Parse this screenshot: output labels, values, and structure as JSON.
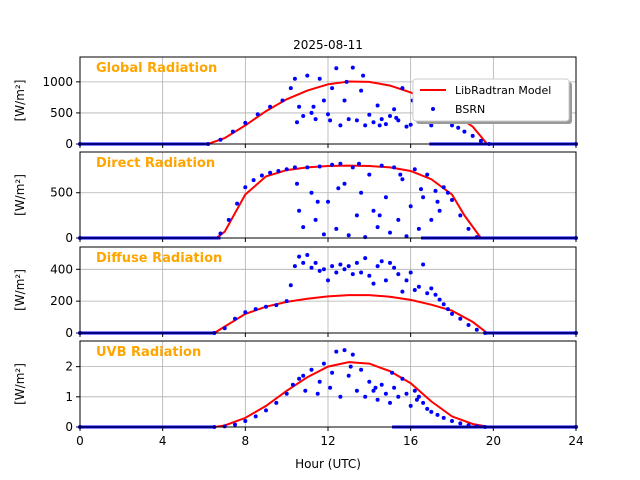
{
  "figure": {
    "title": "2025-08-11",
    "xlabel": "Hour (UTC)",
    "xlim": [
      0,
      24
    ],
    "xticks": [
      0,
      4,
      8,
      12,
      16,
      20,
      24
    ],
    "xtick_labels": [
      "0",
      "4",
      "8",
      "12",
      "16",
      "20",
      "24"
    ],
    "title_color": "#ffa500",
    "model_color": "#ff0000",
    "obs_color": "#0000ff",
    "legend": {
      "placement": "top-right of first panel",
      "model_label": "LibRadtran Model",
      "obs_label": "BSRN"
    }
  },
  "chart_data": [
    {
      "type": "line",
      "panel_title": "Global Radiation",
      "ylabel": "[W/m²]",
      "ylim": [
        0,
        1400
      ],
      "yticks": [
        0,
        500,
        1000
      ],
      "ytick_labels": [
        "0",
        "500",
        "1000"
      ],
      "grid": true,
      "series": [
        {
          "name": "LibRadtran Model",
          "style": "line",
          "x": [
            0,
            6.2,
            7,
            8,
            9,
            10,
            11,
            12,
            13,
            14,
            15,
            16,
            17,
            18,
            19,
            19.7,
            24
          ],
          "y": [
            0,
            0,
            95,
            300,
            530,
            720,
            860,
            960,
            1005,
            1000,
            940,
            830,
            690,
            500,
            280,
            0,
            0
          ]
        },
        {
          "name": "BSRN",
          "style": "scatter",
          "x": [
            0,
            6.2,
            6.8,
            7.4,
            8,
            8.6,
            9.2,
            9.8,
            10.2,
            10.4,
            10.6,
            10.8,
            11.0,
            11.2,
            11.4,
            11.6,
            11.8,
            12.0,
            12.2,
            12.4,
            12.6,
            12.8,
            13.0,
            13.2,
            13.4,
            13.6,
            13.8,
            14.0,
            14.2,
            14.4,
            14.6,
            14.8,
            15.0,
            15.2,
            15.4,
            15.6,
            15.8,
            16.0,
            16.2,
            16.4,
            16.6,
            16.8,
            17.0,
            17.2,
            17.4,
            17.6,
            17.8,
            18.0,
            18.3,
            18.6,
            19.0,
            19.4,
            19.8,
            24,
            10.5,
            11.3,
            12.1,
            12.9,
            13.7,
            14.5,
            15.3,
            16.1,
            16.9,
            17.5
          ],
          "y": [
            0,
            0,
            70,
            200,
            340,
            480,
            600,
            700,
            900,
            1050,
            600,
            450,
            1100,
            500,
            400,
            1050,
            700,
            480,
            900,
            1220,
            300,
            700,
            400,
            1230,
            380,
            860,
            300,
            470,
            350,
            620,
            400,
            320,
            450,
            560,
            380,
            900,
            280,
            310,
            450,
            600,
            520,
            380,
            300,
            520,
            450,
            400,
            380,
            300,
            260,
            200,
            130,
            50,
            0,
            0,
            350,
            600,
            380,
            1000,
            1100,
            300,
            420,
            700,
            350,
            480
          ]
        }
      ]
    },
    {
      "type": "line",
      "panel_title": "Direct Radiation",
      "ylabel": "[W/m²]",
      "ylim": [
        0,
        950
      ],
      "yticks": [
        0,
        500
      ],
      "ytick_labels": [
        "0",
        "500"
      ],
      "grid": true,
      "series": [
        {
          "name": "LibRadtran Model",
          "style": "line",
          "x": [
            0,
            6.6,
            7,
            8,
            9,
            10,
            11,
            12,
            13,
            14,
            15,
            16,
            17,
            18,
            18.6,
            19.4,
            24
          ],
          "y": [
            0,
            0,
            70,
            480,
            680,
            750,
            780,
            795,
            800,
            795,
            780,
            740,
            650,
            480,
            250,
            0,
            0
          ]
        },
        {
          "name": "BSRN",
          "style": "scatter",
          "x": [
            0,
            6.8,
            7.2,
            7.6,
            8.0,
            8.4,
            8.8,
            9.2,
            9.6,
            10.0,
            10.4,
            10.6,
            10.8,
            11.0,
            11.2,
            11.4,
            11.6,
            11.8,
            12.0,
            12.2,
            12.4,
            12.6,
            12.8,
            13.0,
            13.2,
            13.4,
            13.6,
            13.8,
            14.0,
            14.2,
            14.4,
            14.6,
            14.8,
            15.0,
            15.2,
            15.4,
            15.6,
            15.8,
            16.0,
            16.2,
            16.4,
            16.6,
            16.8,
            17.0,
            17.2,
            17.4,
            17.6,
            17.8,
            18.0,
            18.4,
            18.8,
            19.2,
            24,
            10.5,
            11.5,
            12.5,
            13.5,
            14.5,
            15.5,
            16.5,
            17.3
          ],
          "y": [
            0,
            50,
            200,
            380,
            560,
            640,
            690,
            720,
            740,
            760,
            780,
            300,
            120,
            780,
            500,
            200,
            790,
            40,
            400,
            810,
            100,
            820,
            600,
            30,
            780,
            250,
            500,
            10,
            700,
            300,
            120,
            800,
            450,
            60,
            780,
            200,
            650,
            20,
            350,
            760,
            100,
            450,
            700,
            200,
            520,
            300,
            560,
            500,
            420,
            250,
            100,
            10,
            0,
            600,
            400,
            550,
            820,
            250,
            700,
            540,
            400
          ]
        }
      ]
    },
    {
      "type": "line",
      "panel_title": "Diffuse Radiation",
      "ylabel": "[W/m²]",
      "ylim": [
        0,
        540
      ],
      "yticks": [
        0,
        200,
        400
      ],
      "ytick_labels": [
        "0",
        "200",
        "400"
      ],
      "grid": true,
      "series": [
        {
          "name": "LibRadtran Model",
          "style": "line",
          "x": [
            0,
            6.5,
            7,
            8,
            9,
            10,
            11,
            12,
            13,
            14,
            15,
            16,
            17,
            18,
            19,
            19.7,
            24
          ],
          "y": [
            0,
            0,
            40,
            120,
            165,
            195,
            215,
            230,
            238,
            238,
            228,
            208,
            178,
            140,
            70,
            0,
            0
          ]
        },
        {
          "name": "BSRN",
          "style": "scatter",
          "x": [
            0,
            6.5,
            7.0,
            7.5,
            8.0,
            8.5,
            9.0,
            9.5,
            10.0,
            10.2,
            10.4,
            10.6,
            10.8,
            11.0,
            11.2,
            11.4,
            11.6,
            11.8,
            12.0,
            12.2,
            12.4,
            12.6,
            12.8,
            13.0,
            13.2,
            13.4,
            13.6,
            13.8,
            14.0,
            14.2,
            14.4,
            14.6,
            14.8,
            15.0,
            15.2,
            15.4,
            15.6,
            15.8,
            16.0,
            16.2,
            16.4,
            16.6,
            16.8,
            17.0,
            17.2,
            17.4,
            17.6,
            17.8,
            18.0,
            18.4,
            18.8,
            19.2,
            19.6,
            24
          ],
          "y": [
            0,
            0,
            30,
            90,
            130,
            150,
            165,
            175,
            200,
            300,
            420,
            480,
            440,
            490,
            410,
            440,
            390,
            400,
            330,
            420,
            380,
            430,
            400,
            420,
            370,
            440,
            380,
            470,
            360,
            310,
            420,
            450,
            330,
            440,
            410,
            370,
            260,
            330,
            380,
            270,
            290,
            430,
            250,
            280,
            240,
            210,
            180,
            150,
            120,
            90,
            50,
            20,
            0,
            0
          ]
        }
      ]
    },
    {
      "type": "line",
      "panel_title": "UVB Radiation",
      "ylabel": "[W/m²]",
      "ylim": [
        0,
        2.85
      ],
      "yticks": [
        0,
        1,
        2
      ],
      "ytick_labels": [
        "0",
        "1",
        "2"
      ],
      "grid": true,
      "series": [
        {
          "name": "LibRadtran Model",
          "style": "line",
          "x": [
            0,
            6.5,
            7,
            8,
            9,
            10,
            11,
            12,
            13,
            14,
            15,
            16,
            17,
            18,
            19,
            19.8,
            24
          ],
          "y": [
            0,
            0,
            0.05,
            0.3,
            0.7,
            1.2,
            1.65,
            2.0,
            2.15,
            2.1,
            1.85,
            1.45,
            0.85,
            0.35,
            0.1,
            0,
            0
          ]
        },
        {
          "name": "BSRN",
          "style": "scatter",
          "x": [
            0,
            6.5,
            7.0,
            7.5,
            8.0,
            8.5,
            9.0,
            9.5,
            10.0,
            10.3,
            10.6,
            10.9,
            11.2,
            11.5,
            11.8,
            12.1,
            12.4,
            12.6,
            12.8,
            13.0,
            13.2,
            13.4,
            13.6,
            13.8,
            14.0,
            14.2,
            14.4,
            14.6,
            14.8,
            15.0,
            15.2,
            15.4,
            15.6,
            15.8,
            16.0,
            16.2,
            16.4,
            16.6,
            16.8,
            17.0,
            17.3,
            17.6,
            18.0,
            18.4,
            18.8,
            19.2,
            19.6,
            24,
            10.8,
            11.6,
            12.2,
            13.1,
            14.3,
            15.1,
            16.3
          ],
          "y": [
            0,
            0,
            0.02,
            0.08,
            0.2,
            0.35,
            0.55,
            0.8,
            1.1,
            1.4,
            1.6,
            1.2,
            1.9,
            1.1,
            2.1,
            1.3,
            2.5,
            1.0,
            2.55,
            1.7,
            2.4,
            1.2,
            1.9,
            1.0,
            1.5,
            1.2,
            0.9,
            1.4,
            1.1,
            0.8,
            1.3,
            1.0,
            1.6,
            1.1,
            0.7,
            1.2,
            1.0,
            0.8,
            0.6,
            0.5,
            0.4,
            0.3,
            0.2,
            0.12,
            0.06,
            0.02,
            0,
            0,
            1.7,
            1.5,
            1.8,
            2.0,
            1.3,
            1.8,
            0.9
          ]
        }
      ]
    }
  ]
}
